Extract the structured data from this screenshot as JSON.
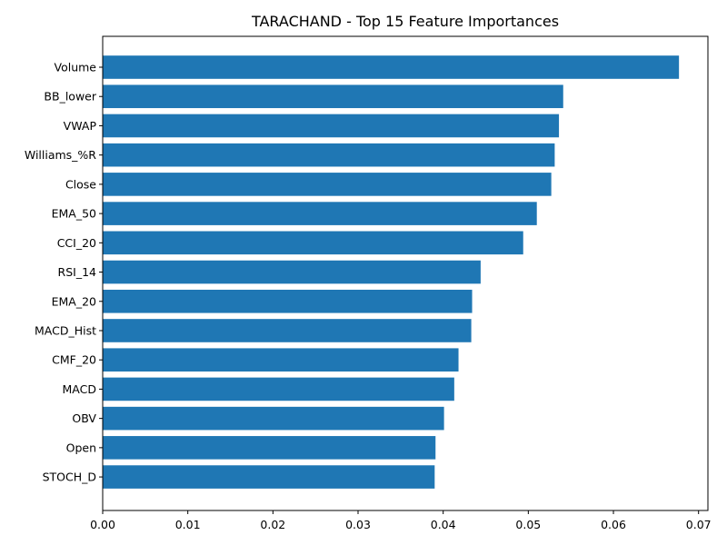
{
  "chart_data": {
    "type": "bar",
    "orientation": "horizontal",
    "title": "TARACHAND - Top 15 Feature Importances",
    "xlabel": "",
    "ylabel": "",
    "categories": [
      "Volume",
      "BB_lower",
      "VWAP",
      "Williams_%R",
      "Close",
      "EMA_50",
      "CCI_20",
      "RSI_14",
      "EMA_20",
      "MACD_Hist",
      "CMF_20",
      "MACD",
      "OBV",
      "Open",
      "STOCH_D"
    ],
    "values": [
      0.0677,
      0.0541,
      0.0536,
      0.0531,
      0.0527,
      0.051,
      0.0494,
      0.0444,
      0.0434,
      0.0433,
      0.0418,
      0.0413,
      0.0401,
      0.0391,
      0.039
    ],
    "xlim": [
      0,
      0.0711
    ],
    "xticks": [
      "0.00",
      "0.01",
      "0.02",
      "0.03",
      "0.04",
      "0.05",
      "0.06",
      "0.07"
    ],
    "xtick_values": [
      0,
      0.01,
      0.02,
      0.03,
      0.04,
      0.05,
      0.06,
      0.07
    ],
    "bar_color": "#1f77b4",
    "grid": false,
    "legend": "none"
  }
}
